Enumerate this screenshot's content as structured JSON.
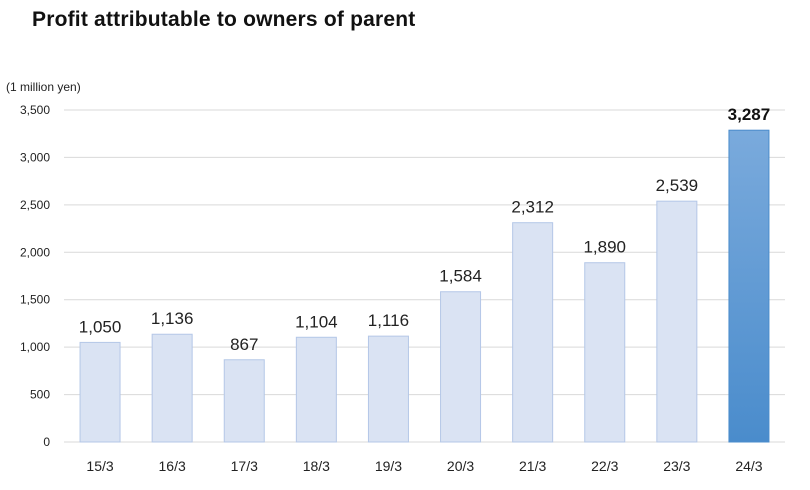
{
  "chart_data": {
    "type": "bar",
    "title": "Profit attributable to owners of parent",
    "unit_label": "(1 million yen)",
    "categories": [
      "15/3",
      "16/3",
      "17/3",
      "18/3",
      "19/3",
      "20/3",
      "21/3",
      "22/3",
      "23/3",
      "24/3"
    ],
    "values": [
      1050,
      1136,
      867,
      1104,
      1116,
      1584,
      2312,
      1890,
      2539,
      3287
    ],
    "value_labels": [
      "1,050",
      "1,136",
      "867",
      "1,104",
      "1,116",
      "1,584",
      "2,312",
      "1,890",
      "2,539",
      "3,287"
    ],
    "ylim": [
      0,
      3500
    ],
    "yticks": [
      0,
      500,
      1000,
      1500,
      2000,
      2500,
      3000,
      3500
    ],
    "ytick_labels": [
      "0",
      "500",
      "1,000",
      "1,500",
      "2,000",
      "2,500",
      "3,000",
      "3,500"
    ],
    "highlight_index": 9,
    "grid": true,
    "colors": {
      "bar": "#dae3f3",
      "bar_stroke": "#b4c7e7",
      "highlight_top": "#7aaadc",
      "highlight_bottom": "#4a8ccc",
      "grid": "#d9d9d9"
    }
  }
}
